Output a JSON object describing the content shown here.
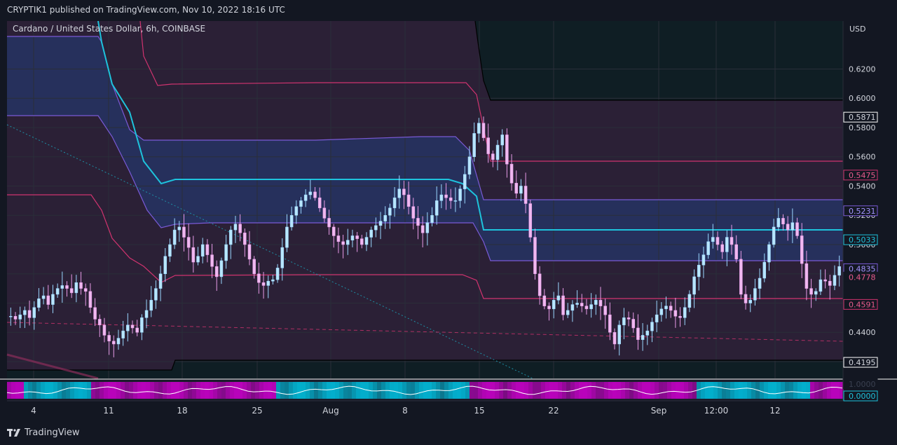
{
  "header": {
    "publish_line": "CRYPTIK1 published on TradingView.com, Nov 10, 2022 18:16 UTC"
  },
  "footer": {
    "brand": "TradingView"
  },
  "colors": {
    "background": "#131722",
    "candle": "#e89be8",
    "candle_alt": "#9ad7ff",
    "midline": "#1ec3dc",
    "band_line": "#7a5ad6",
    "outer_line": "#d0336f",
    "price_box_border": "#ffffff",
    "oscillator_magenta": "#cc00cc",
    "oscillator_cyan": "#00c0e0"
  },
  "chart_data": {
    "type": "candlestick",
    "title": "Cardano / United States Dollar, 6h, COINBASE",
    "currency": "USD",
    "y_ticks": [
      "0.6200",
      "0.6000",
      "0.5800",
      "0.5600",
      "0.5400",
      "0.5200",
      "0.5000",
      "0.4800",
      "0.4600",
      "0.4400",
      "0.4200"
    ],
    "ylim": [
      0.4085,
      0.6528
    ],
    "x_ticks": [
      "4",
      "11",
      "18",
      "25",
      "Aug",
      "8",
      "15",
      "22",
      "Sep",
      "12:00",
      "12"
    ],
    "price_labels": [
      {
        "value": "0.5871",
        "price": 0.5871,
        "style": "dark"
      },
      {
        "value": "0.5475",
        "price": 0.5475,
        "style": "pink"
      },
      {
        "value": "0.5231",
        "price": 0.5231,
        "style": "purple"
      },
      {
        "value": "0.5033",
        "price": 0.5033,
        "style": "cyan"
      },
      {
        "value": "0.4835",
        "price": 0.4835,
        "style": "purple"
      },
      {
        "value": "0.4778",
        "price": 0.4778,
        "style": "pink_text"
      },
      {
        "value": "0.4591",
        "price": 0.4591,
        "style": "pink"
      },
      {
        "value": "0.4195",
        "price": 0.4195,
        "style": "dark"
      }
    ],
    "oscillator_labels": [
      "1.0000",
      "0.0000"
    ],
    "close_path": [
      0.451,
      0.449,
      0.452,
      0.455,
      0.45,
      0.457,
      0.463,
      0.465,
      0.459,
      0.466,
      0.47,
      0.472,
      0.47,
      0.467,
      0.474,
      0.47,
      0.468,
      0.457,
      0.449,
      0.445,
      0.438,
      0.434,
      0.432,
      0.436,
      0.441,
      0.445,
      0.443,
      0.44,
      0.45,
      0.455,
      0.462,
      0.47,
      0.48,
      0.492,
      0.5,
      0.51,
      0.512,
      0.505,
      0.498,
      0.488,
      0.492,
      0.5,
      0.493,
      0.485,
      0.478,
      0.489,
      0.5,
      0.51,
      0.514,
      0.508,
      0.5,
      0.49,
      0.48,
      0.474,
      0.472,
      0.475,
      0.476,
      0.484,
      0.498,
      0.512,
      0.52,
      0.526,
      0.53,
      0.534,
      0.536,
      0.532,
      0.525,
      0.518,
      0.512,
      0.506,
      0.502,
      0.5,
      0.503,
      0.506,
      0.504,
      0.5,
      0.505,
      0.51,
      0.513,
      0.516,
      0.52,
      0.525,
      0.532,
      0.538,
      0.534,
      0.526,
      0.518,
      0.513,
      0.508,
      0.515,
      0.52,
      0.53,
      0.534,
      0.532,
      0.53,
      0.53,
      0.538,
      0.548,
      0.56,
      0.576,
      0.583,
      0.573,
      0.562,
      0.558,
      0.568,
      0.575,
      0.555,
      0.542,
      0.535,
      0.54,
      0.528,
      0.505,
      0.48,
      0.465,
      0.458,
      0.456,
      0.462,
      0.465,
      0.452,
      0.455,
      0.459,
      0.46,
      0.458,
      0.456,
      0.459,
      0.462,
      0.458,
      0.452,
      0.44,
      0.432,
      0.445,
      0.45,
      0.449,
      0.443,
      0.435,
      0.438,
      0.441,
      0.447,
      0.452,
      0.456,
      0.458,
      0.455,
      0.451,
      0.45,
      0.457,
      0.466,
      0.478,
      0.486,
      0.493,
      0.502,
      0.505,
      0.5,
      0.495,
      0.505,
      0.5,
      0.49,
      0.466,
      0.46,
      0.462,
      0.47,
      0.477,
      0.488,
      0.5,
      0.512,
      0.518,
      0.514,
      0.51,
      0.515,
      0.506,
      0.487,
      0.47,
      0.466,
      0.468,
      0.476,
      0.475,
      0.472,
      0.479,
      0.485
    ]
  }
}
